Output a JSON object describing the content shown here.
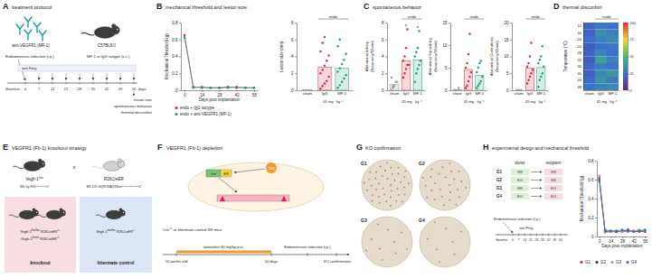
{
  "panels": {
    "A": {
      "letter": "A",
      "title": "treatment protocol",
      "antibody": "anti-VEGFR1 (MF-1)",
      "mouse": "C57BL6/J",
      "timeline": {
        "baseline": "Baseline",
        "days": [
          0,
          7,
          14,
          21,
          28,
          35,
          42,
          49,
          56
        ],
        "unit": "days",
        "events": [
          "Endometriosis induction (i.p.)",
          "von Frey",
          "MF-1 or IgG isotype (s.c.)"
        ],
        "endpoints": [
          "lesion size",
          "spontaneous behavior",
          "thermal disconfort"
        ]
      }
    },
    "B": {
      "letter": "B",
      "title": "mechanical threshold and lesion size"
    },
    "C": {
      "letter": "C",
      "title": "spontaneous behavior"
    },
    "D": {
      "letter": "D",
      "title": "thermal disconfort"
    },
    "E": {
      "letter": "E",
      "title": "VEGFR1 (Flt-1) knockout strategy",
      "cross": "x",
      "parents": [
        {
          "name": [
            "Vegfr-1",
            "flox"
          ],
          "strain": [
            "B6.Cg-Flt1",
            "tm1.1Sest",
            "/J"
          ]
        },
        {
          "name": [
            "R26CreER"
          ],
          "strain": [
            "B6;129-Gt(ROSA)26Sor",
            "tm1(cre/ERT)Nat",
            "/J"
          ]
        }
      ],
      "groups": [
        {
          "label": "knockout",
          "genotypes": [
            [
              "Vegfr-1",
              "flox/flox",
              " R26CreER",
              "+/-"
            ],
            [
              "Vegfr-1",
              "flox/wt",
              " R26CreER",
              "+/-"
            ]
          ]
        },
        {
          "label": "littermate control",
          "genotypes": [
            [
              "Vegfr-1",
              "flox/flox",
              " R26CreER",
              "-/-"
            ]
          ]
        }
      ]
    },
    "F": {
      "letter": "F",
      "title": "VEGFR1 (Flt-1) depletion",
      "construct": [
        "Cre",
        "ER"
      ],
      "drug": "TAM",
      "mice": [
        "Cre",
        "+/-",
        " or littermate control fl/fl mice"
      ],
      "treatment": "tamoxifen 40 mg/kg p.o.",
      "induction": "Endometriosis induction (i.p.)",
      "start": "10 weeks old",
      "interval": "10 days",
      "end": "KO confirmation"
    },
    "G": {
      "letter": "G",
      "title": "KO confirmation",
      "groups": [
        "G1",
        "G2",
        "G3",
        "G4"
      ]
    },
    "H": {
      "letter": "H",
      "title": "experimental design and mechanical threshold",
      "design": {
        "headers": [
          "donor",
          "recipient"
        ],
        "rows": [
          [
            "G1",
            "fl/fl",
            "fl/fl"
          ],
          [
            "G2",
            "KO",
            "fl/fl"
          ],
          [
            "G3",
            "fl/fl",
            "KO"
          ],
          [
            "G4",
            "KO",
            "KO"
          ]
        ]
      },
      "timeline": {
        "event": "Endometriosis induction (i.p.)",
        "test": "von Frey",
        "baseline": "Baseline",
        "days": [
          0,
          7,
          14,
          21,
          28,
          35,
          42,
          49,
          56
        ]
      }
    }
  },
  "chart_data": [
    {
      "type": "line",
      "x": [
        0,
        7,
        14,
        21,
        28,
        35,
        42,
        49,
        56
      ],
      "xlim": [
        -3,
        59
      ],
      "xticks": [
        0,
        14,
        28,
        42,
        56
      ],
      "ylim": [
        0,
        0.8
      ],
      "yticks": [
        0,
        0.2,
        0.4,
        0.6,
        0.8
      ],
      "x_label": "Days post implantation",
      "y_label": "Mechanical Threshold (g)",
      "marker": "circle",
      "legend": "bottom",
      "series": [
        {
          "name": "endo + IgG isotype",
          "color": "#d7263d",
          "values": [
            0.65,
            0.04,
            0.03,
            0.03,
            0.03,
            0.04,
            0.03,
            0.03,
            0.03
          ]
        },
        {
          "name": "endo + anti-VEGFR1 (MF-1)",
          "color": "#1b9e77",
          "values": [
            0.62,
            0.03,
            0.04,
            0.03,
            0.03,
            0.03,
            0.04,
            0.03,
            0.03
          ]
        }
      ]
    },
    {
      "type": "bar",
      "categories": [
        "sham",
        "IgG",
        "MF-1"
      ],
      "values": [
        0,
        2.7,
        2.6
      ],
      "points": [
        [
          0,
          0,
          0,
          0,
          0
        ],
        [
          0.2,
          0.5,
          0.8,
          1.1,
          1.6,
          2.0,
          2.4,
          2.9,
          3.5,
          4.1,
          4.6,
          5.6,
          6.3
        ],
        [
          0.3,
          0.6,
          1.0,
          1.4,
          1.8,
          2.2,
          2.6,
          3.1,
          3.6,
          4.3,
          5.2,
          6.0
        ]
      ],
      "colors": [
        "#9e9e9e",
        "#d7263d",
        "#1b9e77"
      ],
      "ylim": [
        0,
        8
      ],
      "yticks": [
        0,
        2,
        4,
        6,
        8
      ],
      "y_label": "Lesion size (mm)",
      "annotations": [
        "endo",
        "45 mg · kg⁻¹"
      ]
    },
    {
      "type": "bar",
      "categories": [
        "sham",
        "IgG",
        "MF-1"
      ],
      "values": [
        0.7,
        3.5,
        3.6
      ],
      "points": [
        [
          0,
          0.3,
          0.5,
          1,
          1,
          1.5,
          0.5
        ],
        [
          1.5,
          2,
          2.5,
          3,
          3,
          3.5,
          4,
          5,
          7.2
        ],
        [
          1,
          2,
          2.5,
          3,
          3.5,
          4,
          4.5,
          5,
          7
        ]
      ],
      "colors": [
        "#9e9e9e",
        "#d7263d",
        "#1b9e77"
      ],
      "ylim": [
        0,
        8
      ],
      "yticks": [
        0,
        2,
        4,
        6,
        8
      ],
      "y_label": [
        "Abdominal licking",
        "(frequency/15min)"
      ],
      "significance": [
        null,
        "*",
        "*"
      ],
      "annotations": [
        "endo",
        "45 mg · kg⁻¹"
      ]
    },
    {
      "type": "bar",
      "categories": [
        "sham",
        "IgG",
        "MF-1"
      ],
      "values": [
        0.1,
        4.6,
        3.3
      ],
      "points": [
        [
          0,
          0,
          0,
          0.5,
          0,
          0
        ],
        [
          0.5,
          1,
          2,
          3,
          4,
          5,
          6,
          8,
          12.5
        ],
        [
          0.5,
          1,
          1.5,
          2,
          3,
          4,
          5,
          6,
          6.5
        ]
      ],
      "colors": [
        "#9e9e9e",
        "#d7263d",
        "#1b9e77"
      ],
      "ylim": [
        0,
        15
      ],
      "yticks": [
        0,
        5,
        10,
        15
      ],
      "y_label": [
        "Abdominal Squashing",
        "(frequency/15min)"
      ],
      "annotations": [
        "endo",
        "45 mg · kg⁻¹"
      ]
    },
    {
      "type": "bar",
      "categories": [
        "sham",
        "IgG",
        "MF-1"
      ],
      "values": [
        0,
        6.6,
        6.7
      ],
      "points": [
        [
          0,
          0,
          0,
          0,
          0
        ],
        [
          2,
          3,
          4,
          5,
          6,
          7,
          8,
          10,
          14
        ],
        [
          1,
          3,
          4,
          5,
          7,
          8,
          9,
          10,
          13
        ]
      ],
      "colors": [
        "#9e9e9e",
        "#d7263d",
        "#1b9e77"
      ],
      "ylim": [
        0,
        20
      ],
      "yticks": [
        0,
        5,
        10,
        15,
        20
      ],
      "y_label": [
        "Abdominal Contortions",
        "(frequency/15min)"
      ],
      "annotations": [
        "endo",
        "45 mg · kg⁻¹"
      ]
    },
    {
      "type": "heatmap",
      "x": [
        "sham",
        "IgG",
        "MF-1"
      ],
      "y": [
        12,
        16,
        20,
        24,
        28,
        32,
        36,
        40,
        44,
        48
      ],
      "values": [
        [
          22,
          28,
          26
        ],
        [
          20,
          35,
          30
        ],
        [
          25,
          30,
          34
        ],
        [
          18,
          26,
          28
        ],
        [
          21,
          32,
          25
        ],
        [
          19,
          40,
          30
        ],
        [
          23,
          29,
          27
        ],
        [
          20,
          33,
          38
        ],
        [
          24,
          36,
          29
        ],
        [
          26,
          31,
          33
        ]
      ],
      "y_label": "Temperature (°C)",
      "colorbar": {
        "range": [
          0,
          100
        ],
        "ticks": [
          0,
          25,
          50,
          75,
          100
        ]
      },
      "annotations": [
        "endo",
        "45 mg · kg⁻¹"
      ]
    },
    {
      "type": "line",
      "x": [
        0,
        7,
        14,
        21,
        28,
        35,
        42,
        49,
        56
      ],
      "xlim": [
        -3,
        59
      ],
      "xticks": [
        0,
        14,
        28,
        42,
        56
      ],
      "ylim": [
        0,
        0.8
      ],
      "yticks": [
        0,
        0.2,
        0.4,
        0.6,
        0.8
      ],
      "x_label": "Days post implantation",
      "y_label": "Mechanical Threshold (g)",
      "marker": "circle",
      "legend": "bottom",
      "series": [
        {
          "name": "G1",
          "color": "#d7263d",
          "values": [
            0.62,
            0.06,
            0.05,
            0.05,
            0.06,
            0.05,
            0.06,
            0.05,
            0.06
          ]
        },
        {
          "name": "G2",
          "color": "#333333",
          "values": [
            0.6,
            0.05,
            0.06,
            0.05,
            0.05,
            0.07,
            0.05,
            0.06,
            0.05
          ]
        },
        {
          "name": "G3",
          "color": "#9a9a9a",
          "values": [
            0.64,
            0.04,
            0.05,
            0.06,
            0.05,
            0.05,
            0.06,
            0.07,
            0.06
          ]
        },
        {
          "name": "G4",
          "color": "#3a6fb0",
          "values": [
            0.58,
            0.07,
            0.06,
            0.06,
            0.07,
            0.06,
            0.05,
            0.06,
            0.07
          ]
        }
      ]
    }
  ]
}
